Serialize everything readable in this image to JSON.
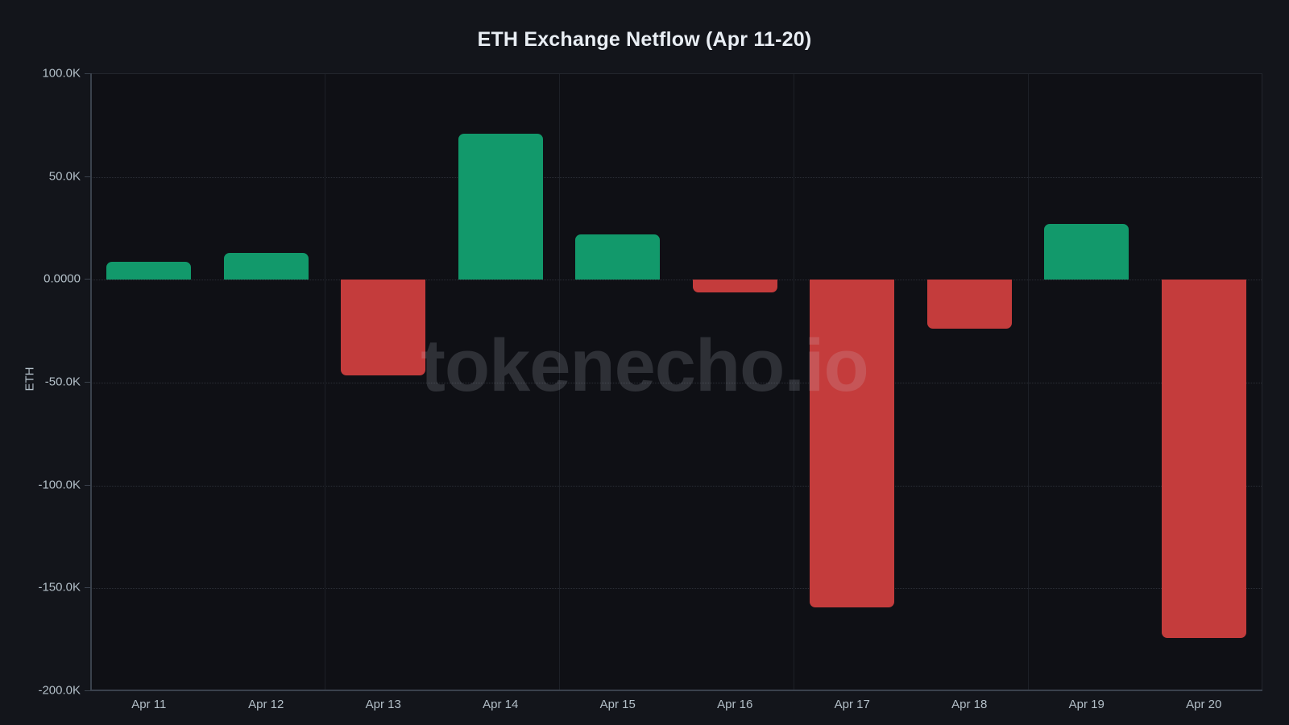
{
  "title": "ETH Exchange Netflow (Apr 11-20)",
  "watermark": "tokenecho.io",
  "y_axis_label": "ETH",
  "chart_data": {
    "type": "bar",
    "title": "ETH Exchange Netflow (Apr 11-20)",
    "xlabel": "",
    "ylabel": "ETH",
    "categories": [
      "Apr 11",
      "Apr 12",
      "Apr 13",
      "Apr 14",
      "Apr 15",
      "Apr 16",
      "Apr 17",
      "Apr 18",
      "Apr 19",
      "Apr 20"
    ],
    "values": [
      8900,
      13000,
      -46500,
      71000,
      22000,
      -6000,
      -159300,
      -23600,
      27300,
      -174000
    ],
    "unit": "ETH",
    "ylim": [
      -200000,
      100000
    ],
    "y_ticks": [
      {
        "value": 100000,
        "label": "100.0K"
      },
      {
        "value": 50000,
        "label": "50.0K"
      },
      {
        "value": 0,
        "label": "0.0000"
      },
      {
        "value": -50000,
        "label": "-50.0K"
      },
      {
        "value": -100000,
        "label": "-100.0K"
      },
      {
        "value": -150000,
        "label": "-150.0K"
      },
      {
        "value": -200000,
        "label": "-200.0K"
      }
    ],
    "grid": true,
    "legend": false,
    "colors": {
      "positive": "#12996b",
      "negative": "#c43c3c",
      "background": "#13151b",
      "plot_background": "#0f1015",
      "tick_label": "#b3bfc8",
      "title_text": "#e9eef4"
    }
  }
}
